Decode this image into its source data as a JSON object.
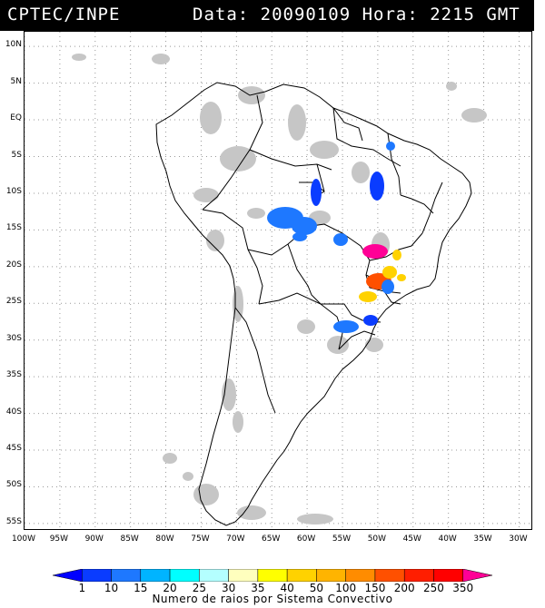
{
  "header": {
    "agency": "CPTEC/INPE",
    "datetime": "Data: 20090109 Hora: 2215 GMT"
  },
  "map": {
    "lat_labels": [
      "10N",
      "5N",
      "EQ",
      "5S",
      "10S",
      "15S",
      "20S",
      "25S",
      "30S",
      "35S",
      "40S",
      "45S",
      "50S",
      "55S"
    ],
    "lon_labels": [
      "100W",
      "95W",
      "90W",
      "85W",
      "80W",
      "75W",
      "70W",
      "65W",
      "60W",
      "55W",
      "50W",
      "45W",
      "40W",
      "35W",
      "30W"
    ],
    "extent": {
      "lon_min": -100,
      "lon_max": -28,
      "lat_min": -56,
      "lat_max": 12
    }
  },
  "legend": {
    "values": [
      "1",
      "10",
      "15",
      "20",
      "25",
      "30",
      "35",
      "40",
      "50",
      "100",
      "150",
      "200",
      "250",
      "350"
    ],
    "caption": "Numero de raios por Sistema Convectivo",
    "colors": [
      "#0000ff",
      "#0a3cff",
      "#1e78ff",
      "#00b4ff",
      "#00ffff",
      "#b4ffff",
      "#ffffbe",
      "#ffff00",
      "#ffd200",
      "#ffb400",
      "#ff8c00",
      "#ff5000",
      "#ff1e00",
      "#ff0000",
      "#ff0096"
    ]
  },
  "cells": [
    {
      "color": "#0a3cff"
    },
    {
      "color": "#1e78ff"
    },
    {
      "color": "#1e78ff"
    },
    {
      "color": "#1e78ff"
    },
    {
      "color": "#1e78ff"
    },
    {
      "color": "#0a3cff"
    },
    {
      "color": "#1e78ff"
    },
    {
      "color": "#ff0096"
    },
    {
      "color": "#ffd200"
    },
    {
      "color": "#ff5000"
    },
    {
      "color": "#ffd200"
    },
    {
      "color": "#ffd200"
    },
    {
      "color": "#1e78ff"
    },
    {
      "color": "#1e78ff"
    },
    {
      "color": "#0a3cff"
    },
    {
      "color": "#ffd200"
    }
  ]
}
